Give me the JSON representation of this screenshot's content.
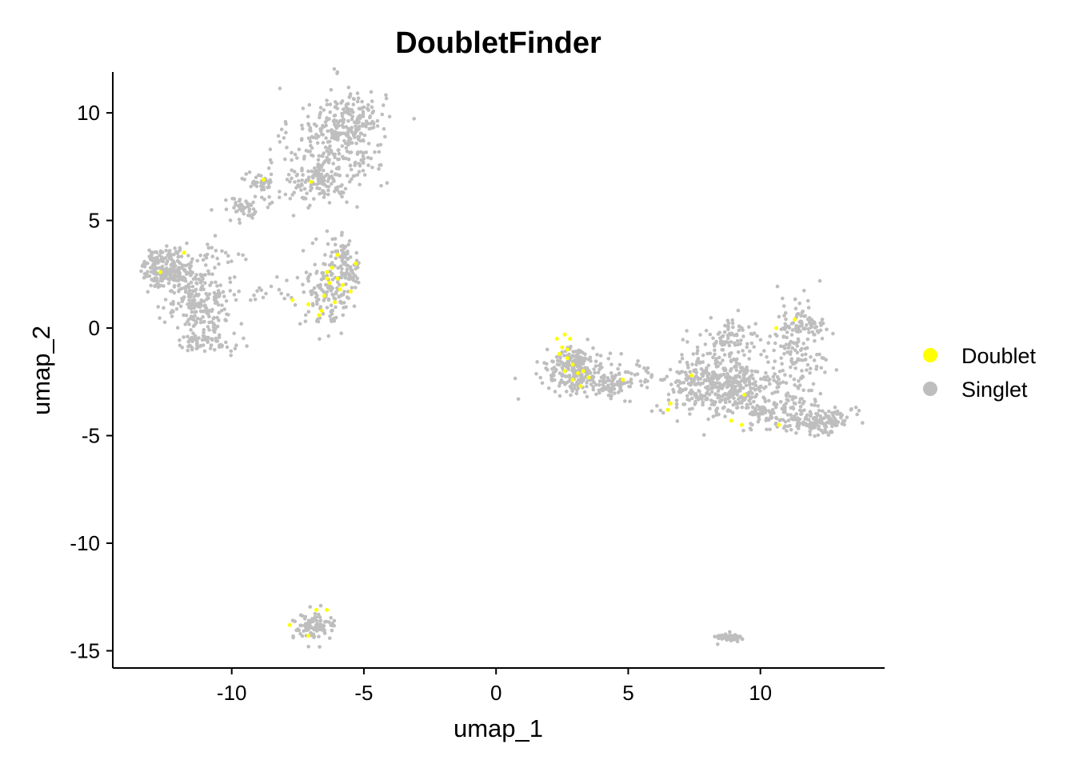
{
  "chart_data": {
    "type": "scatter",
    "title": "DoubletFinder",
    "xlabel": "umap_1",
    "ylabel": "umap_2",
    "xlim": [
      -14.5,
      14.7
    ],
    "ylim": [
      -15.8,
      11.9
    ],
    "xticks": [
      -10,
      -5,
      0,
      5,
      10
    ],
    "xtick_labels": [
      "-10",
      "-5",
      "0",
      "5",
      "10"
    ],
    "yticks": [
      -15,
      -10,
      -5,
      0,
      5,
      10
    ],
    "ytick_labels": [
      "-15",
      "-10",
      "-5",
      "0",
      "5",
      "10"
    ],
    "grid": false,
    "legend_position": "right",
    "series": [
      {
        "name": "Singlet",
        "color": "#BEBEBE",
        "clusters": [
          {
            "x": -6.0,
            "y": 8.8,
            "sx": 0.9,
            "sy": 1.2,
            "n": 260
          },
          {
            "x": -5.3,
            "y": 9.6,
            "sx": 0.5,
            "sy": 0.7,
            "n": 90
          },
          {
            "x": -6.7,
            "y": 6.9,
            "sx": 0.7,
            "sy": 0.5,
            "n": 110
          },
          {
            "x": -8.9,
            "y": 6.8,
            "sx": 0.3,
            "sy": 0.2,
            "n": 35
          },
          {
            "x": -8.0,
            "y": 6.3,
            "sx": 0.8,
            "sy": 0.5,
            "n": 25
          },
          {
            "x": -9.6,
            "y": 5.5,
            "sx": 0.4,
            "sy": 0.3,
            "n": 45
          },
          {
            "x": -12.4,
            "y": 2.8,
            "sx": 0.5,
            "sy": 0.45,
            "n": 210
          },
          {
            "x": -11.4,
            "y": 1.4,
            "sx": 0.6,
            "sy": 0.7,
            "n": 150
          },
          {
            "x": -10.8,
            "y": 0.6,
            "sx": 0.4,
            "sy": 0.6,
            "n": 60
          },
          {
            "x": -11.1,
            "y": -0.7,
            "sx": 0.6,
            "sy": 0.25,
            "n": 70
          },
          {
            "x": -10.3,
            "y": 3.4,
            "sx": 0.4,
            "sy": 0.4,
            "n": 25
          },
          {
            "x": -8.5,
            "y": 1.7,
            "sx": 0.9,
            "sy": 0.3,
            "n": 25
          },
          {
            "x": -6.3,
            "y": 1.9,
            "sx": 0.45,
            "sy": 1.0,
            "n": 150
          },
          {
            "x": -5.8,
            "y": 3.5,
            "sx": 0.2,
            "sy": 0.4,
            "n": 30
          },
          {
            "x": -5.4,
            "y": 2.5,
            "sx": 0.2,
            "sy": 0.4,
            "n": 30
          },
          {
            "x": -6.9,
            "y": -13.9,
            "sx": 0.4,
            "sy": 0.3,
            "n": 90
          },
          {
            "x": 3.0,
            "y": -1.9,
            "sx": 0.55,
            "sy": 0.5,
            "n": 230
          },
          {
            "x": 4.3,
            "y": -2.6,
            "sx": 0.5,
            "sy": 0.3,
            "n": 80
          },
          {
            "x": 5.5,
            "y": -2.1,
            "sx": 0.3,
            "sy": 0.3,
            "n": 15
          },
          {
            "x": 8.4,
            "y": -2.7,
            "sx": 1.1,
            "sy": 0.7,
            "n": 440
          },
          {
            "x": 8.8,
            "y": -0.6,
            "sx": 0.7,
            "sy": 0.5,
            "n": 90
          },
          {
            "x": 11.3,
            "y": -1.4,
            "sx": 0.5,
            "sy": 1.3,
            "n": 170
          },
          {
            "x": 11.8,
            "y": 0.2,
            "sx": 0.4,
            "sy": 0.3,
            "n": 50
          },
          {
            "x": 12.3,
            "y": -4.3,
            "sx": 0.6,
            "sy": 0.3,
            "n": 150
          },
          {
            "x": 10.2,
            "y": -3.8,
            "sx": 0.6,
            "sy": 0.5,
            "n": 80
          },
          {
            "x": 8.8,
            "y": -14.4,
            "sx": 0.25,
            "sy": 0.1,
            "n": 55
          }
        ]
      },
      {
        "name": "Doublet",
        "color": "#FFFF00",
        "points": [
          [
            -6.0,
            3.4
          ],
          [
            -6.2,
            2.8
          ],
          [
            -6.4,
            2.6
          ],
          [
            -6.0,
            2.3
          ],
          [
            -6.3,
            2.1
          ],
          [
            -5.9,
            1.8
          ],
          [
            -6.5,
            1.5
          ],
          [
            -6.1,
            1.2
          ],
          [
            -7.1,
            1.1
          ],
          [
            -6.7,
            0.6
          ],
          [
            -7.7,
            1.3
          ],
          [
            -6.6,
            0.8
          ],
          [
            -5.5,
            1.7
          ],
          [
            -5.8,
            2.0
          ],
          [
            -6.4,
            2.3
          ],
          [
            -5.3,
            3.0
          ],
          [
            -12.7,
            2.6
          ],
          [
            -11.8,
            3.5
          ],
          [
            -8.8,
            6.9
          ],
          [
            -7.0,
            6.8
          ],
          [
            2.6,
            -0.3
          ],
          [
            2.8,
            -0.5
          ],
          [
            2.5,
            -0.9
          ],
          [
            2.3,
            -0.5
          ],
          [
            2.4,
            -1.2
          ],
          [
            2.7,
            -1.4
          ],
          [
            2.9,
            -1.7
          ],
          [
            2.6,
            -2.0
          ],
          [
            3.1,
            -2.1
          ],
          [
            3.3,
            -2.0
          ],
          [
            2.9,
            -2.4
          ],
          [
            3.5,
            -2.3
          ],
          [
            3.2,
            -2.7
          ],
          [
            2.7,
            -1.0
          ],
          [
            4.8,
            -2.4
          ],
          [
            6.5,
            -3.8
          ],
          [
            6.6,
            -3.5
          ],
          [
            7.4,
            -2.2
          ],
          [
            8.9,
            -4.3
          ],
          [
            9.3,
            -4.5
          ],
          [
            9.4,
            -3.1
          ],
          [
            10.6,
            0.0
          ],
          [
            10.7,
            -4.5
          ],
          [
            11.3,
            0.4
          ],
          [
            -7.8,
            -13.8
          ],
          [
            -6.8,
            -13.1
          ],
          [
            -6.4,
            -13.1
          ],
          [
            -7.1,
            -14.3
          ]
        ]
      }
    ],
    "legend": [
      "Doublet",
      "Singlet"
    ]
  }
}
